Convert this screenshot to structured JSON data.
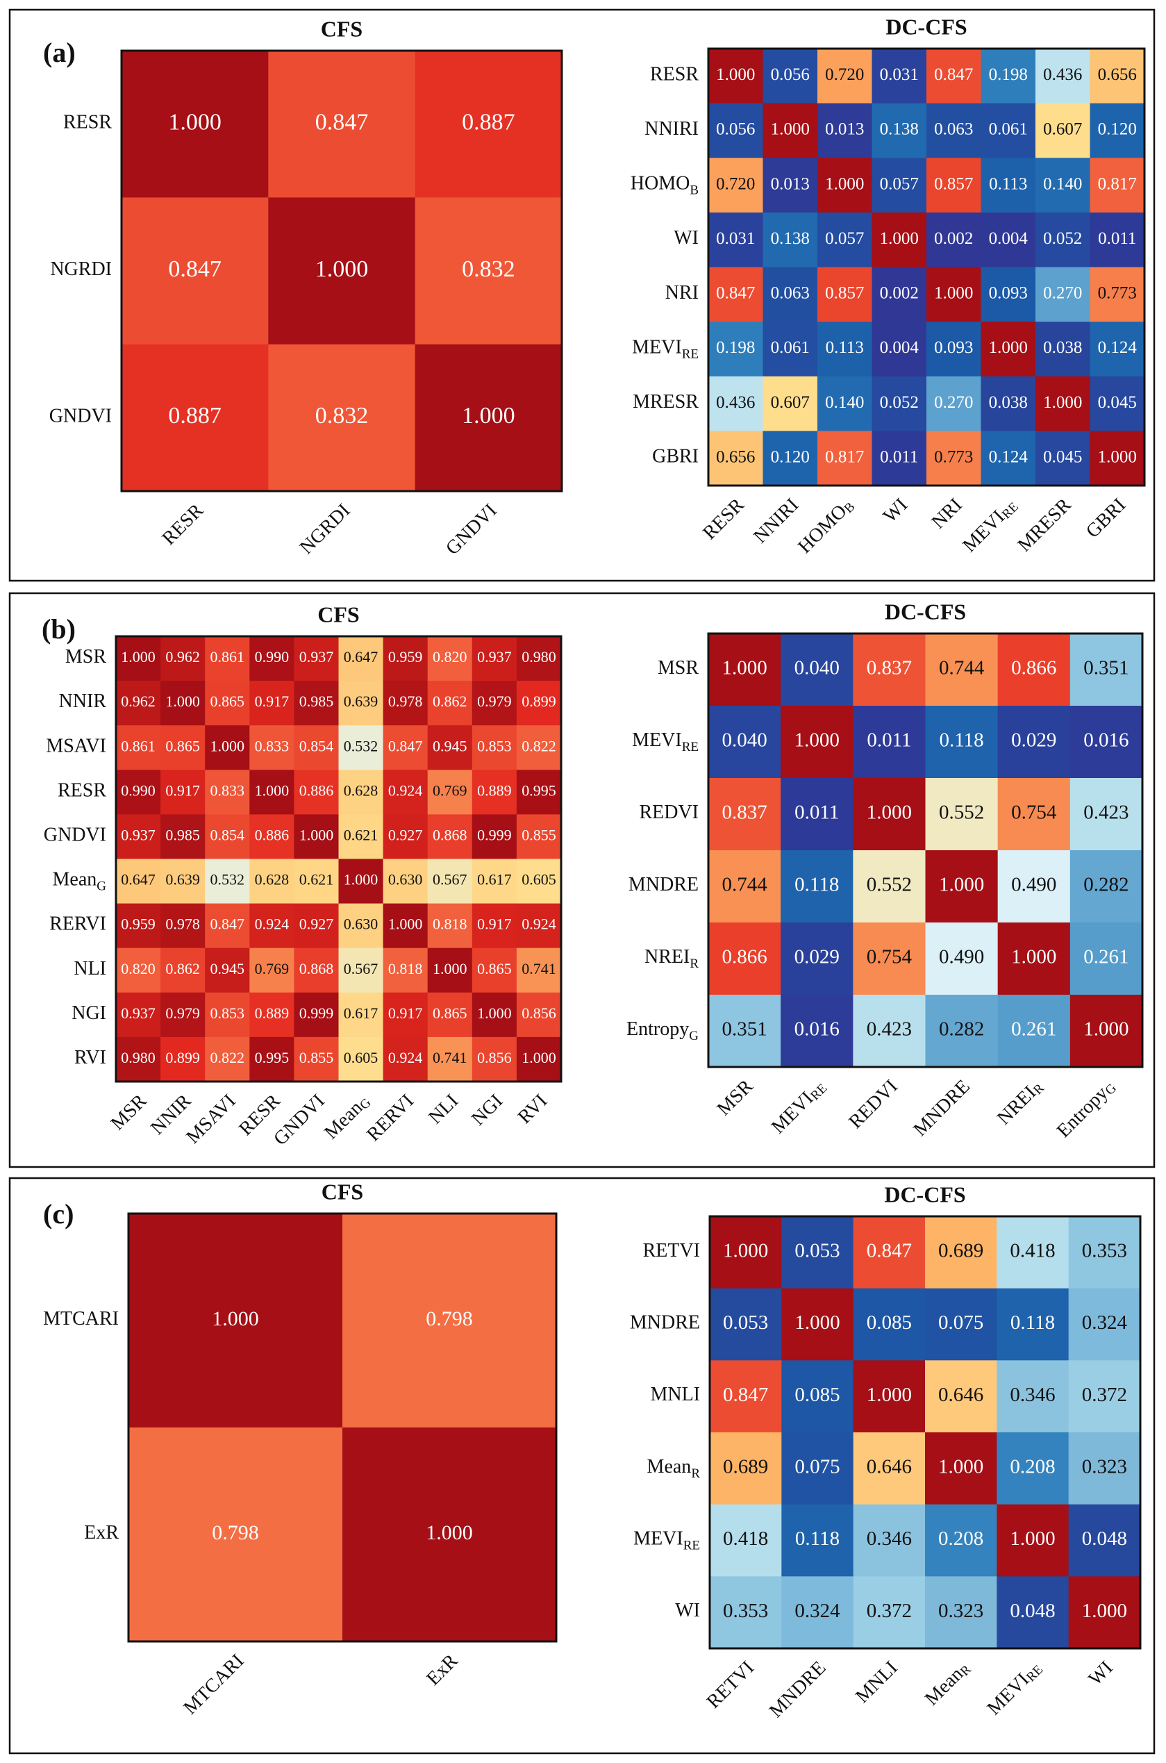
{
  "panels": [
    {
      "letter": "(a)",
      "charts": [
        {
          "title": "CFS",
          "type": "heatmap",
          "labels": [
            [
              "RESR",
              ""
            ],
            [
              "NGRDI",
              ""
            ],
            [
              "GNDVI",
              ""
            ]
          ],
          "values": [
            [
              1.0,
              0.847,
              0.887
            ],
            [
              0.847,
              1.0,
              0.832
            ],
            [
              0.887,
              0.832,
              1.0
            ]
          ]
        },
        {
          "title": "DC-CFS",
          "type": "heatmap",
          "labels": [
            [
              "RESR",
              ""
            ],
            [
              "NNIRI",
              ""
            ],
            [
              "HOMO",
              "B"
            ],
            [
              "WI",
              ""
            ],
            [
              "NRI",
              ""
            ],
            [
              "MEVI",
              "RE"
            ],
            [
              "MRESR",
              ""
            ],
            [
              "GBRI",
              ""
            ]
          ],
          "values": [
            [
              1.0,
              0.056,
              0.72,
              0.031,
              0.847,
              0.198,
              0.436,
              0.656
            ],
            [
              0.056,
              1.0,
              0.013,
              0.138,
              0.063,
              0.061,
              0.607,
              0.12
            ],
            [
              0.72,
              0.013,
              1.0,
              0.057,
              0.857,
              0.113,
              0.14,
              0.817
            ],
            [
              0.031,
              0.138,
              0.057,
              1.0,
              0.002,
              0.004,
              0.052,
              0.011
            ],
            [
              0.847,
              0.063,
              0.857,
              0.002,
              1.0,
              0.093,
              0.27,
              0.773
            ],
            [
              0.198,
              0.061,
              0.113,
              0.004,
              0.093,
              1.0,
              0.038,
              0.124
            ],
            [
              0.436,
              0.607,
              0.14,
              0.052,
              0.27,
              0.038,
              1.0,
              0.045
            ],
            [
              0.656,
              0.12,
              0.817,
              0.011,
              0.773,
              0.124,
              0.045,
              1.0
            ]
          ]
        }
      ]
    },
    {
      "letter": "(b)",
      "charts": [
        {
          "title": "CFS",
          "type": "heatmap",
          "labels": [
            [
              "MSR",
              ""
            ],
            [
              "NNIR",
              ""
            ],
            [
              "MSAVI",
              ""
            ],
            [
              "RESR",
              ""
            ],
            [
              "GNDVI",
              ""
            ],
            [
              "Mean",
              "G"
            ],
            [
              "RERVI",
              ""
            ],
            [
              "NLI",
              ""
            ],
            [
              "NGI",
              ""
            ],
            [
              "RVI",
              ""
            ]
          ],
          "values": [
            [
              1.0,
              0.962,
              0.861,
              0.99,
              0.937,
              0.647,
              0.959,
              0.82,
              0.937,
              0.98
            ],
            [
              0.962,
              1.0,
              0.865,
              0.917,
              0.985,
              0.639,
              0.978,
              0.862,
              0.979,
              0.899
            ],
            [
              0.861,
              0.865,
              1.0,
              0.833,
              0.854,
              0.532,
              0.847,
              0.945,
              0.853,
              0.822
            ],
            [
              0.99,
              0.917,
              0.833,
              1.0,
              0.886,
              0.628,
              0.924,
              0.769,
              0.889,
              0.995
            ],
            [
              0.937,
              0.985,
              0.854,
              0.886,
              1.0,
              0.621,
              0.927,
              0.868,
              0.999,
              0.855
            ],
            [
              0.647,
              0.639,
              0.532,
              0.628,
              0.621,
              1.0,
              0.63,
              0.567,
              0.617,
              0.605
            ],
            [
              0.959,
              0.978,
              0.847,
              0.924,
              0.927,
              0.63,
              1.0,
              0.818,
              0.917,
              0.924
            ],
            [
              0.82,
              0.862,
              0.945,
              0.769,
              0.868,
              0.567,
              0.818,
              1.0,
              0.865,
              0.741
            ],
            [
              0.937,
              0.979,
              0.853,
              0.889,
              0.999,
              0.617,
              0.917,
              0.865,
              1.0,
              0.856
            ],
            [
              0.98,
              0.899,
              0.822,
              0.995,
              0.855,
              0.605,
              0.924,
              0.741,
              0.856,
              1.0
            ]
          ]
        },
        {
          "title": "DC-CFS",
          "type": "heatmap",
          "labels": [
            [
              "MSR",
              ""
            ],
            [
              "MEVI",
              "RE"
            ],
            [
              "REDVI",
              ""
            ],
            [
              "MNDRE",
              ""
            ],
            [
              "NREI",
              "R"
            ],
            [
              "Entropy",
              "G"
            ]
          ],
          "values": [
            [
              1.0,
              0.04,
              0.837,
              0.744,
              0.866,
              0.351
            ],
            [
              0.04,
              1.0,
              0.011,
              0.118,
              0.029,
              0.016
            ],
            [
              0.837,
              0.011,
              1.0,
              0.552,
              0.754,
              0.423
            ],
            [
              0.744,
              0.118,
              0.552,
              1.0,
              0.49,
              0.282
            ],
            [
              0.866,
              0.029,
              0.754,
              0.49,
              1.0,
              0.261
            ],
            [
              0.351,
              0.016,
              0.423,
              0.282,
              0.261,
              1.0
            ]
          ]
        }
      ]
    },
    {
      "letter": "(c)",
      "charts": [
        {
          "title": "CFS",
          "type": "heatmap",
          "labels": [
            [
              "MTCARI",
              ""
            ],
            [
              "ExR",
              ""
            ]
          ],
          "values": [
            [
              1.0,
              0.798
            ],
            [
              0.798,
              1.0
            ]
          ]
        },
        {
          "title": "DC-CFS",
          "type": "heatmap",
          "labels": [
            [
              "RETVI",
              ""
            ],
            [
              "MNDRE",
              ""
            ],
            [
              "MNLI",
              ""
            ],
            [
              "Mean",
              "R"
            ],
            [
              "MEVI",
              "RE"
            ],
            [
              "WI",
              ""
            ]
          ],
          "values": [
            [
              1.0,
              0.053,
              0.847,
              0.689,
              0.418,
              0.353
            ],
            [
              0.053,
              1.0,
              0.085,
              0.075,
              0.118,
              0.324
            ],
            [
              0.847,
              0.085,
              1.0,
              0.646,
              0.346,
              0.372
            ],
            [
              0.689,
              0.075,
              0.646,
              1.0,
              0.208,
              0.323
            ],
            [
              0.418,
              0.118,
              0.346,
              0.208,
              1.0,
              0.048
            ],
            [
              0.353,
              0.324,
              0.372,
              0.323,
              0.048,
              1.0
            ]
          ]
        }
      ]
    }
  ],
  "colormap": {
    "name": "RdYlBu_r",
    "stops": [
      "#313695",
      "#1a5da8",
      "#2f7fbc",
      "#70b0d6",
      "#abd9e9",
      "#e0f3f8",
      "#fee090",
      "#fdae61",
      "#f46d43",
      "#e3281f",
      "#a50f15"
    ]
  }
}
